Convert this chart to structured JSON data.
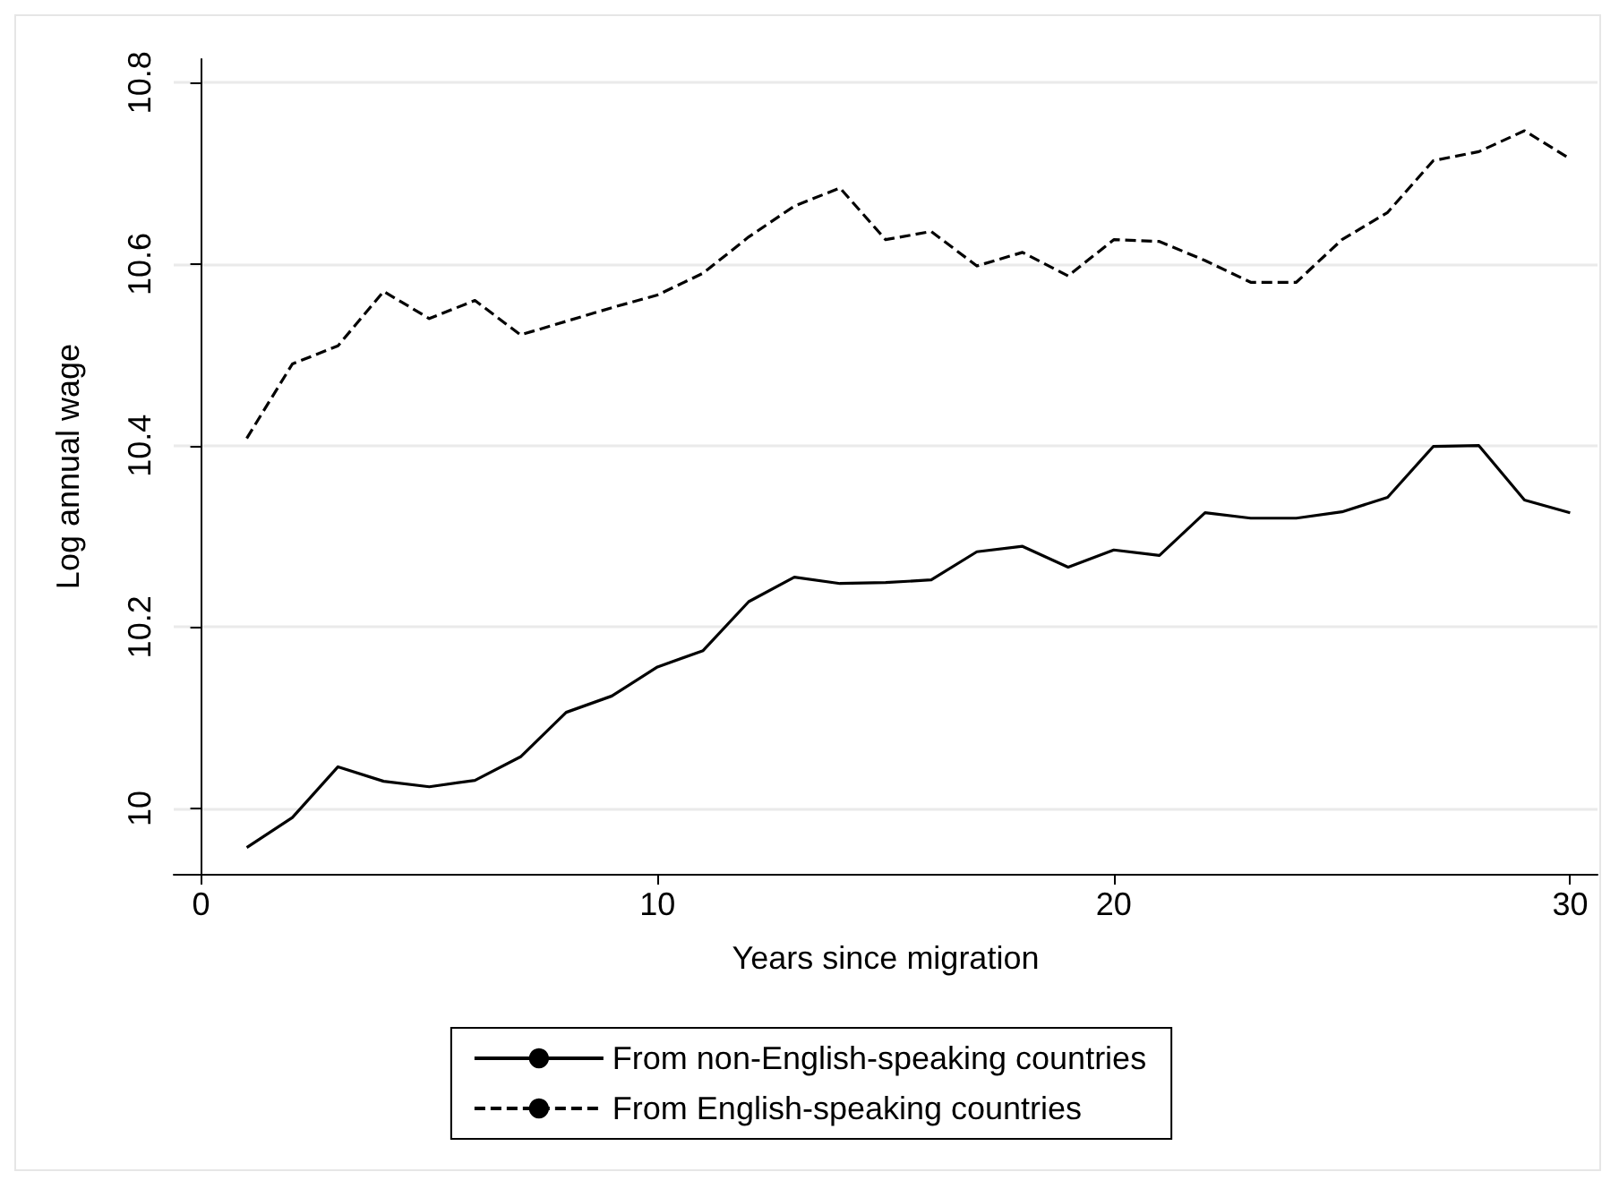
{
  "chart_data": {
    "type": "line",
    "xlabel": "Years since migration",
    "ylabel": "Log annual wage",
    "x": [
      1,
      2,
      3,
      4,
      5,
      6,
      7,
      8,
      9,
      10,
      11,
      12,
      13,
      14,
      15,
      16,
      17,
      18,
      19,
      20,
      21,
      22,
      23,
      24,
      25,
      26,
      27,
      28,
      29,
      30
    ],
    "series": [
      {
        "name": "From non-English-speaking countries",
        "color": "#000000",
        "line_style": "solid",
        "values": [
          9.957,
          9.99,
          10.046,
          10.03,
          10.024,
          10.031,
          10.057,
          10.106,
          10.124,
          10.156,
          10.174,
          10.228,
          10.255,
          10.248,
          10.249,
          10.252,
          10.283,
          10.289,
          10.266,
          10.285,
          10.279,
          10.326,
          10.32,
          10.32,
          10.327,
          10.343,
          10.399,
          10.4,
          10.34,
          10.326
        ]
      },
      {
        "name": "From English-speaking countries",
        "color": "#000000",
        "line_style": "dashed",
        "values": [
          10.408,
          10.49,
          10.51,
          10.57,
          10.54,
          10.56,
          10.522,
          10.537,
          10.552,
          10.566,
          10.59,
          10.63,
          10.664,
          10.684,
          10.627,
          10.636,
          10.598,
          10.613,
          10.587,
          10.627,
          10.625,
          10.604,
          10.58,
          10.58,
          10.627,
          10.657,
          10.714,
          10.724,
          10.747,
          10.716
        ]
      }
    ],
    "xlim": [
      -0.6,
      30.6
    ],
    "xticks": [
      0,
      10,
      20,
      30
    ],
    "ylim": [
      9.928,
      10.826
    ],
    "yticks": [
      10,
      10.2,
      10.4,
      10.6,
      10.8
    ],
    "grid": "y",
    "legend": "bottom",
    "marker": "none"
  }
}
